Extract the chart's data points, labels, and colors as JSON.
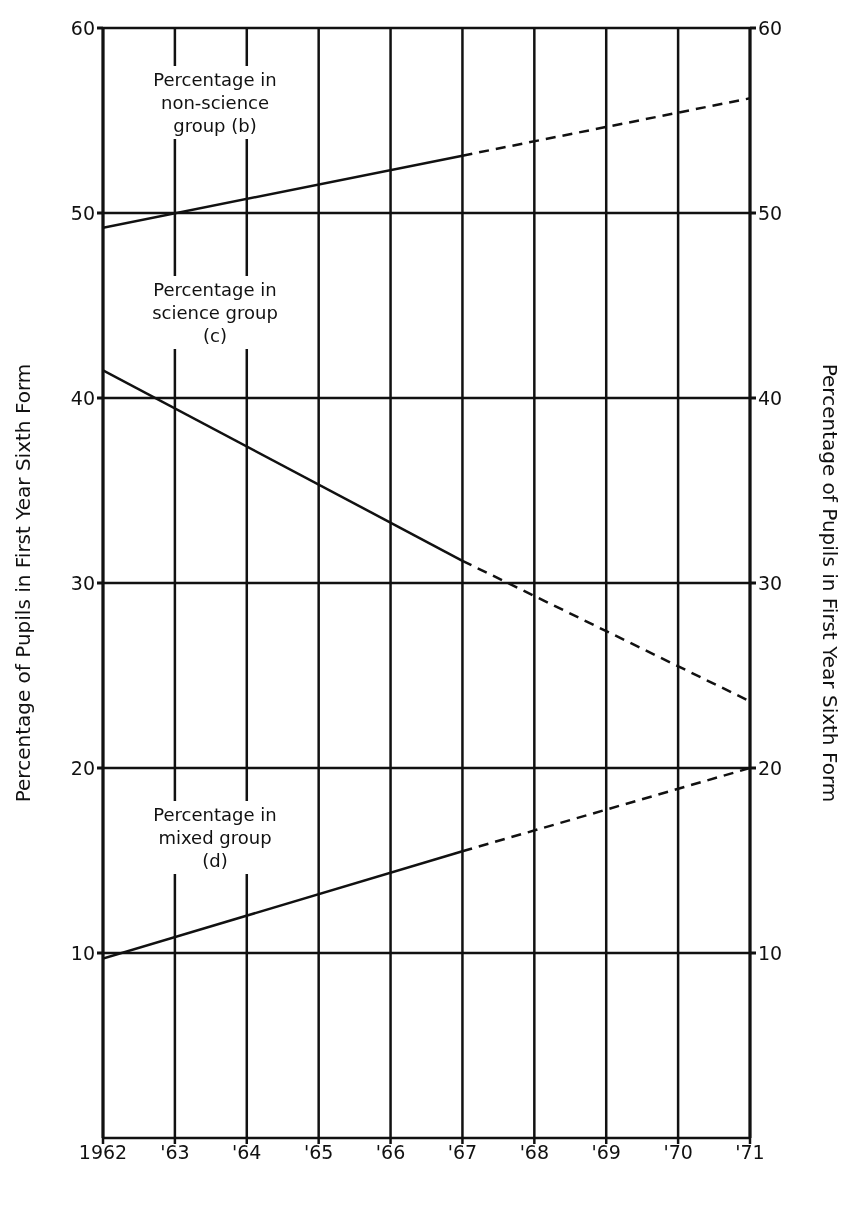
{
  "chart_data": {
    "type": "line",
    "ylabel": "Percentage of  Pupils in  First Year Sixth  Form",
    "y2label": "Percentage of  Pupils in  First Year Sixth  Form",
    "xlim": [
      1962,
      1971
    ],
    "xticks": [
      1962,
      {
        "value": 1963,
        "label": "'63"
      },
      {
        "value": 1964,
        "label": "'64"
      },
      {
        "value": 1965,
        "label": "'65"
      },
      {
        "value": 1966,
        "label": "'66"
      },
      {
        "value": 1967,
        "label": "'67"
      },
      {
        "value": 1968,
        "label": "'68"
      },
      {
        "value": 1969,
        "label": "'69"
      },
      {
        "value": 1970,
        "label": "'70"
      },
      {
        "value": 1971,
        "label": "'71"
      }
    ],
    "ylim": [
      0,
      60
    ],
    "yticks": [
      10,
      20,
      30,
      40,
      50,
      60
    ],
    "y2lim": [
      0,
      60
    ],
    "y2ticks": [
      10,
      20,
      30,
      40,
      50,
      60
    ],
    "grid": true,
    "marker": "none",
    "series": [
      {
        "color": "#111111",
        "x": [
          1962,
          1967
        ],
        "values": [
          49.2,
          53.1
        ],
        "line_style": "solid"
      },
      {
        "color": "#111111",
        "x": [
          1967,
          1971
        ],
        "values": [
          53.1,
          56.2
        ],
        "line_style": "dashed"
      },
      {
        "color": "#111111",
        "x": [
          1962,
          1967
        ],
        "values": [
          41.5,
          31.2
        ],
        "line_style": "solid"
      },
      {
        "color": "#111111",
        "x": [
          1967,
          1971
        ],
        "values": [
          31.2,
          23.6
        ],
        "line_style": "dashed"
      },
      {
        "color": "#111111",
        "x": [
          1962,
          1967
        ],
        "values": [
          9.7,
          15.5
        ],
        "line_style": "solid"
      },
      {
        "color": "#111111",
        "x": [
          1967,
          1971
        ],
        "values": [
          15.5,
          20
        ],
        "line_style": "dashed"
      }
    ],
    "annotations": [
      "Percentage in non-science group (b)",
      "Percentage in science group (c)",
      "Percentage in mixed group (d)"
    ]
  }
}
